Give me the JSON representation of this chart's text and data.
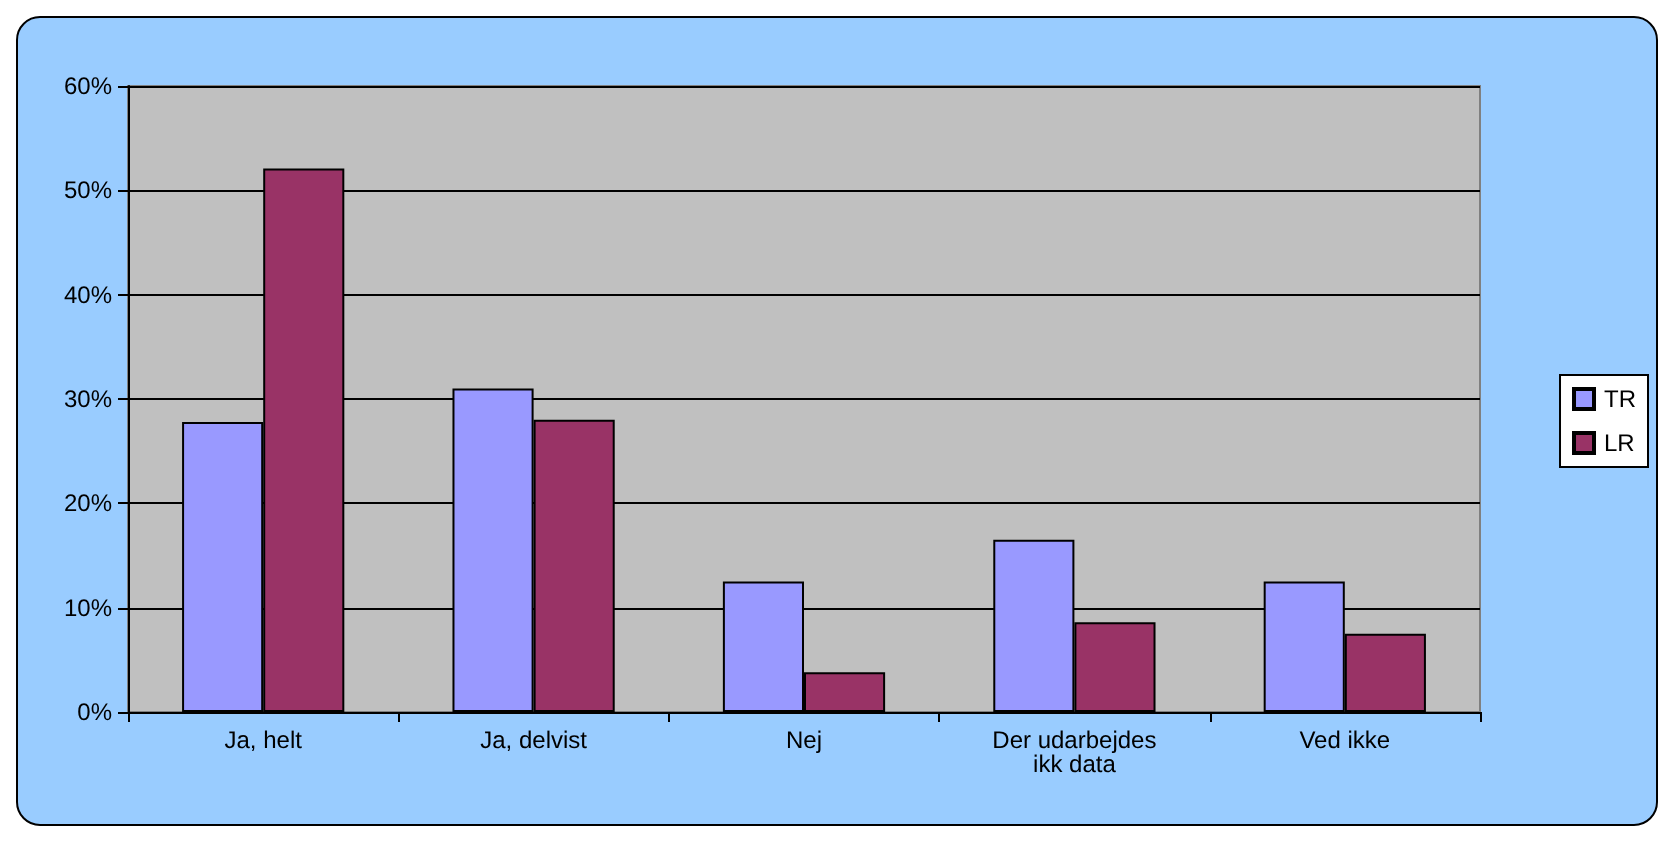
{
  "chart_data": {
    "type": "bar",
    "categories": [
      "Ja, helt",
      "Ja, delvist",
      "Nej",
      "Der udarbejdes\nikk data",
      "Ved ikke"
    ],
    "series": [
      {
        "name": "TR",
        "color": "#9999ff",
        "values": [
          27.8,
          31,
          12.5,
          16.5,
          12.5
        ]
      },
      {
        "name": "LR",
        "color": "#993366",
        "values": [
          52.1,
          28,
          3.8,
          8.6,
          7.5
        ]
      }
    ],
    "ylim": [
      0,
      60
    ],
    "yticks": [
      {
        "value": 0,
        "label": "0%"
      },
      {
        "value": 10,
        "label": "10%"
      },
      {
        "value": 20,
        "label": "20%"
      },
      {
        "value": 30,
        "label": "30%"
      },
      {
        "value": 40,
        "label": "40%"
      },
      {
        "value": 50,
        "label": "50%"
      },
      {
        "value": 60,
        "label": "60%"
      }
    ],
    "grid": "y",
    "legend": "right"
  }
}
